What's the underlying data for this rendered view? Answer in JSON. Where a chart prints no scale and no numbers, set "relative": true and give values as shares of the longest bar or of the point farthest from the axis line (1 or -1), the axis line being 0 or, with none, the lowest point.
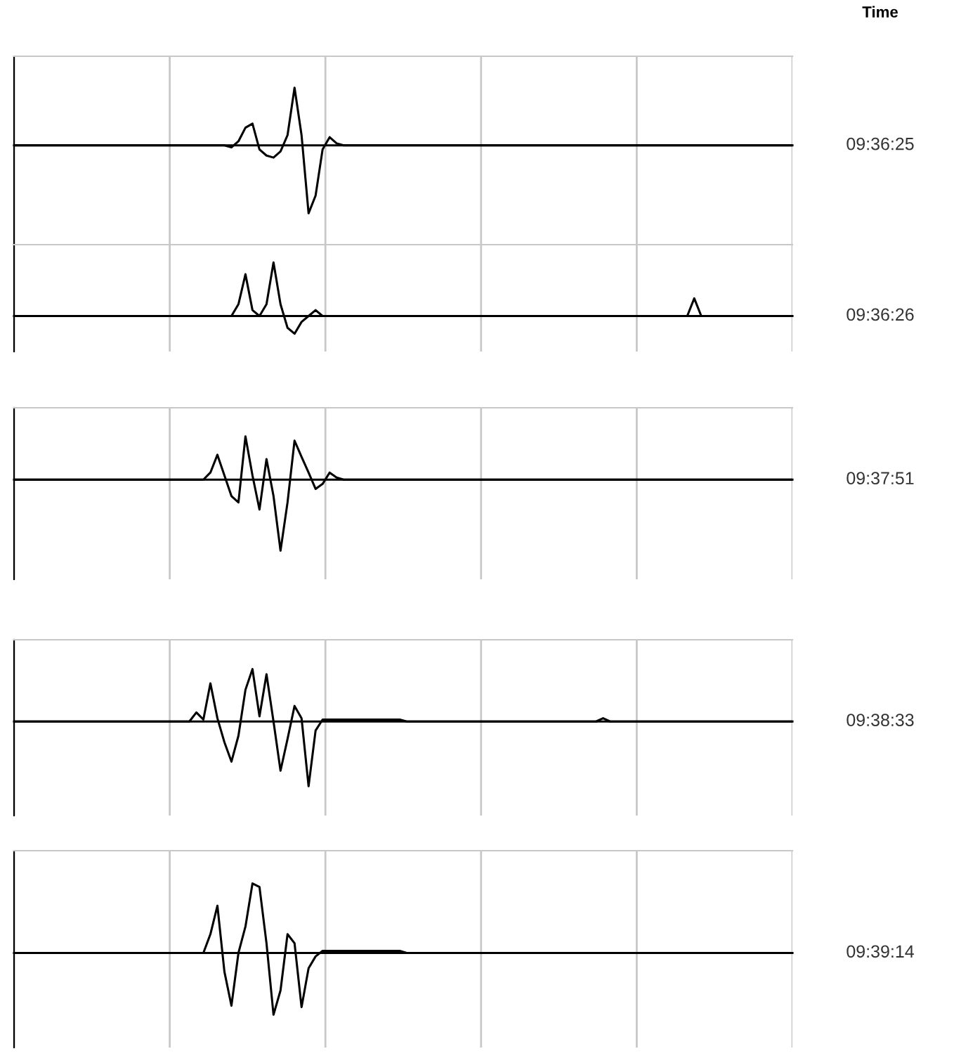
{
  "chart_data": [
    {
      "type": "line",
      "relative": true,
      "grid": true,
      "annotations": [
        "Time",
        "09:36:25"
      ],
      "categories": [
        null,
        null,
        null,
        null,
        null,
        null,
        null,
        null,
        null,
        null,
        null,
        null,
        null,
        null,
        null,
        null,
        null,
        null,
        null,
        null,
        null,
        null,
        null,
        null,
        null,
        null,
        null,
        null,
        null,
        null,
        null,
        null,
        null,
        null,
        null,
        null,
        null,
        null,
        null,
        null,
        null,
        null,
        null,
        null,
        null,
        null,
        null,
        null,
        null,
        null,
        null,
        null,
        null,
        null,
        null,
        null,
        null,
        null,
        null,
        null,
        null,
        null,
        null,
        null,
        null,
        null,
        null,
        null,
        null,
        null,
        null,
        null,
        null,
        null,
        null,
        null,
        null,
        null,
        null,
        null,
        null,
        null,
        null,
        null,
        null,
        null,
        null,
        null,
        null,
        null,
        null,
        null,
        null,
        null,
        null,
        null,
        null,
        null,
        null,
        null,
        null,
        null,
        null,
        null,
        null,
        null,
        null,
        null,
        null,
        null,
        null,
        null
      ],
      "series": [
        {
          "color": "#000000",
          "values": [
            0,
            0,
            0,
            0,
            0,
            0,
            0,
            0,
            0,
            0,
            0,
            0,
            0,
            0,
            0,
            0,
            0,
            0,
            0,
            0,
            0,
            0,
            0,
            0,
            0,
            0,
            0,
            0,
            0,
            0,
            0,
            -0.03,
            0.06,
            0.26,
            0.32,
            -0.06,
            -0.15,
            -0.18,
            -0.09,
            0.15,
            0.85,
            0.15,
            -1,
            -0.74,
            -0.06,
            0.12,
            0.03,
            0,
            0,
            0,
            0,
            0,
            0,
            0,
            0,
            0,
            0,
            0,
            0,
            0,
            0,
            0,
            0,
            0,
            0,
            0,
            0,
            0,
            0,
            0,
            0,
            0,
            0,
            0,
            0,
            0,
            0,
            0,
            0,
            0,
            0,
            0,
            0,
            0,
            0,
            0,
            0,
            0,
            0,
            0,
            0,
            0,
            0,
            0,
            0,
            0,
            0,
            0,
            0,
            0,
            0,
            0,
            0,
            0,
            0,
            0,
            0,
            0,
            0,
            0,
            0,
            0
          ]
        }
      ]
    },
    {
      "type": "line",
      "relative": true,
      "grid": true,
      "annotations": [
        "09:36:26"
      ],
      "categories": [
        null,
        null,
        null,
        null,
        null,
        null,
        null,
        null,
        null,
        null,
        null,
        null,
        null,
        null,
        null,
        null,
        null,
        null,
        null,
        null,
        null,
        null,
        null,
        null,
        null,
        null,
        null,
        null,
        null,
        null,
        null,
        null,
        null,
        null,
        null,
        null,
        null,
        null,
        null,
        null,
        null,
        null,
        null,
        null,
        null,
        null,
        null,
        null,
        null,
        null,
        null,
        null,
        null,
        null,
        null,
        null,
        null,
        null,
        null,
        null,
        null,
        null,
        null,
        null,
        null,
        null,
        null,
        null,
        null,
        null,
        null,
        null,
        null,
        null,
        null,
        null,
        null,
        null,
        null,
        null,
        null,
        null,
        null,
        null,
        null,
        null,
        null,
        null,
        null,
        null,
        null,
        null,
        null,
        null,
        null,
        null,
        null,
        null,
        null,
        null,
        null,
        null,
        null,
        null,
        null,
        null,
        null,
        null,
        null,
        null,
        null,
        null
      ],
      "series": [
        {
          "color": "#000000",
          "values": [
            0,
            0,
            0,
            0,
            0,
            0,
            0,
            0,
            0,
            0,
            0,
            0,
            0,
            0,
            0,
            0,
            0,
            0,
            0,
            0,
            0,
            0,
            0,
            0,
            0,
            0,
            0,
            0,
            0,
            0,
            0,
            0,
            0.22,
            0.78,
            0.11,
            0,
            0.22,
            1,
            0.22,
            -0.22,
            -0.33,
            -0.11,
            0,
            0.11,
            0,
            0,
            0,
            0,
            0,
            0,
            0,
            0,
            0,
            0,
            0,
            0,
            0,
            0,
            0,
            0,
            0,
            0,
            0,
            0,
            0,
            0,
            0,
            0,
            0,
            0,
            0,
            0,
            0,
            0,
            0,
            0,
            0,
            0,
            0,
            0,
            0,
            0,
            0,
            0,
            0,
            0,
            0,
            0,
            0,
            0,
            0,
            0,
            0,
            0,
            0,
            0,
            0,
            0.33,
            0,
            0,
            0,
            0,
            0,
            0,
            0,
            0,
            0,
            0,
            0,
            0,
            0,
            0
          ]
        }
      ]
    },
    {
      "type": "line",
      "relative": true,
      "grid": true,
      "annotations": [
        "09:37:51"
      ],
      "categories": [
        null,
        null,
        null,
        null,
        null,
        null,
        null,
        null,
        null,
        null,
        null,
        null,
        null,
        null,
        null,
        null,
        null,
        null,
        null,
        null,
        null,
        null,
        null,
        null,
        null,
        null,
        null,
        null,
        null,
        null,
        null,
        null,
        null,
        null,
        null,
        null,
        null,
        null,
        null,
        null,
        null,
        null,
        null,
        null,
        null,
        null,
        null,
        null,
        null,
        null,
        null,
        null,
        null,
        null,
        null,
        null,
        null,
        null,
        null,
        null,
        null,
        null,
        null,
        null,
        null,
        null,
        null,
        null,
        null,
        null,
        null,
        null,
        null,
        null,
        null,
        null,
        null,
        null,
        null,
        null,
        null,
        null,
        null,
        null,
        null,
        null,
        null,
        null,
        null,
        null,
        null,
        null,
        null,
        null,
        null,
        null,
        null,
        null,
        null,
        null,
        null,
        null,
        null,
        null,
        null,
        null,
        null,
        null,
        null,
        null,
        null,
        null
      ],
      "series": [
        {
          "color": "#000000",
          "values": [
            0,
            0,
            0,
            0,
            0,
            0,
            0,
            0,
            0,
            0,
            0,
            0,
            0,
            0,
            0,
            0,
            0,
            0,
            0,
            0,
            0,
            0,
            0,
            0,
            0,
            0,
            0,
            0,
            0.1,
            0.35,
            0.06,
            -0.23,
            -0.32,
            0.61,
            0.06,
            -0.42,
            0.29,
            -0.23,
            -1,
            -0.32,
            0.55,
            0.32,
            0.1,
            -0.13,
            -0.06,
            0.1,
            0.03,
            0,
            0,
            0,
            0,
            0,
            0,
            0,
            0,
            0,
            0,
            0,
            0,
            0,
            0,
            0,
            0,
            0,
            0,
            0,
            0,
            0,
            0,
            0,
            0,
            0,
            0,
            0,
            0,
            0,
            0,
            0,
            0,
            0,
            0,
            0,
            0,
            0,
            0,
            0,
            0,
            0,
            0,
            0,
            0,
            0,
            0,
            0,
            0,
            0,
            0,
            0,
            0,
            0,
            0,
            0,
            0,
            0,
            0,
            0,
            0,
            0,
            0,
            0,
            0,
            0
          ]
        }
      ]
    },
    {
      "type": "line",
      "relative": true,
      "grid": true,
      "annotations": [
        "09:38:33"
      ],
      "categories": [
        null,
        null,
        null,
        null,
        null,
        null,
        null,
        null,
        null,
        null,
        null,
        null,
        null,
        null,
        null,
        null,
        null,
        null,
        null,
        null,
        null,
        null,
        null,
        null,
        null,
        null,
        null,
        null,
        null,
        null,
        null,
        null,
        null,
        null,
        null,
        null,
        null,
        null,
        null,
        null,
        null,
        null,
        null,
        null,
        null,
        null,
        null,
        null,
        null,
        null,
        null,
        null,
        null,
        null,
        null,
        null,
        null,
        null,
        null,
        null,
        null,
        null,
        null,
        null,
        null,
        null,
        null,
        null,
        null,
        null,
        null,
        null,
        null,
        null,
        null,
        null,
        null,
        null,
        null,
        null,
        null,
        null,
        null,
        null,
        null,
        null,
        null,
        null,
        null,
        null,
        null,
        null,
        null,
        null,
        null,
        null,
        null,
        null,
        null,
        null,
        null,
        null,
        null,
        null,
        null,
        null,
        null,
        null,
        null,
        null,
        null,
        null
      ],
      "series": [
        {
          "color": "#000000",
          "values": [
            0,
            0,
            0,
            0,
            0,
            0,
            0,
            0,
            0,
            0,
            0,
            0,
            0,
            0,
            0,
            0,
            0,
            0,
            0,
            0,
            0,
            0,
            0,
            0,
            0,
            0,
            0.14,
            0.03,
            0.59,
            0.05,
            -0.32,
            -0.62,
            -0.22,
            0.49,
            0.81,
            0.08,
            0.73,
            0,
            -0.76,
            -0.27,
            0.24,
            0.05,
            -1,
            -0.14,
            0.03,
            0.03,
            0.03,
            0.03,
            0.03,
            0.03,
            0.03,
            0.03,
            0.03,
            0.03,
            0.03,
            0.03,
            0,
            0,
            0,
            0,
            0,
            0,
            0,
            0,
            0,
            0,
            0,
            0,
            0,
            0,
            0,
            0,
            0,
            0,
            0,
            0,
            0,
            0,
            0,
            0,
            0,
            0,
            0,
            0,
            0.05,
            0,
            0,
            0,
            0,
            0,
            0,
            0,
            0,
            0,
            0,
            0,
            0,
            0,
            0,
            0,
            0,
            0,
            0,
            0,
            0,
            0,
            0,
            0,
            0,
            0,
            0,
            0
          ]
        }
      ]
    },
    {
      "type": "line",
      "relative": true,
      "grid": true,
      "annotations": [
        "09:39:14"
      ],
      "categories": [
        null,
        null,
        null,
        null,
        null,
        null,
        null,
        null,
        null,
        null,
        null,
        null,
        null,
        null,
        null,
        null,
        null,
        null,
        null,
        null,
        null,
        null,
        null,
        null,
        null,
        null,
        null,
        null,
        null,
        null,
        null,
        null,
        null,
        null,
        null,
        null,
        null,
        null,
        null,
        null,
        null,
        null,
        null,
        null,
        null,
        null,
        null,
        null,
        null,
        null,
        null,
        null,
        null,
        null,
        null,
        null,
        null,
        null,
        null,
        null,
        null,
        null,
        null,
        null,
        null,
        null,
        null,
        null,
        null,
        null,
        null,
        null,
        null,
        null,
        null,
        null,
        null,
        null,
        null,
        null,
        null,
        null,
        null,
        null,
        null,
        null,
        null,
        null,
        null,
        null,
        null,
        null,
        null,
        null,
        null,
        null,
        null,
        null,
        null,
        null,
        null,
        null,
        null,
        null,
        null,
        null,
        null,
        null,
        null,
        null,
        null,
        null
      ],
      "series": [
        {
          "color": "#000000",
          "values": [
            0,
            0,
            0,
            0,
            0,
            0,
            0,
            0,
            0,
            0,
            0,
            0,
            0,
            0,
            0,
            0,
            0,
            0,
            0,
            0,
            0,
            0,
            0,
            0,
            0,
            0,
            0,
            0,
            0.27,
            0.68,
            -0.27,
            -0.76,
            0,
            0.38,
            1,
            0.95,
            0.14,
            -0.89,
            -0.54,
            0.27,
            0.14,
            -0.78,
            -0.22,
            -0.05,
            0.03,
            0.03,
            0.03,
            0.03,
            0.03,
            0.03,
            0.03,
            0.03,
            0.03,
            0.03,
            0.03,
            0.03,
            0,
            0,
            0,
            0,
            0,
            0,
            0,
            0,
            0,
            0,
            0,
            0,
            0,
            0,
            0,
            0,
            0,
            0,
            0,
            0,
            0,
            0,
            0,
            0,
            0,
            0,
            0,
            0,
            0,
            0,
            0,
            0,
            0,
            0,
            0,
            0,
            0,
            0,
            0,
            0,
            0,
            0,
            0,
            0,
            0,
            0,
            0,
            0,
            0,
            0,
            0,
            0,
            0,
            0,
            0,
            0
          ]
        }
      ]
    }
  ]
}
